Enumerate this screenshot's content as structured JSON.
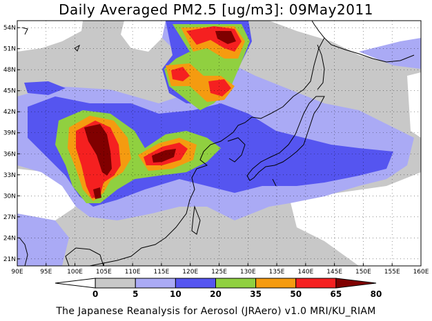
{
  "title": "Daily Averaged PM2.5 [ug/m3]: 09May2011",
  "footer": "The Japanese Reanalysis for Aerosol (JRAero) v1.0 MRI/KU_RIAM",
  "map": {
    "lon_range": [
      90,
      160
    ],
    "lat_range": [
      20,
      55
    ],
    "lon_ticks": [
      "90E",
      "95E",
      "100E",
      "105E",
      "110E",
      "115E",
      "120E",
      "125E",
      "130E",
      "135E",
      "140E",
      "145E",
      "150E",
      "155E",
      "160E"
    ],
    "lat_ticks": [
      "21N",
      "24N",
      "27N",
      "30N",
      "33N",
      "36N",
      "39N",
      "42N",
      "45N",
      "48N",
      "51N",
      "54N"
    ],
    "grid": true
  },
  "colorbar": {
    "levels": [
      "0",
      "5",
      "10",
      "20",
      "35",
      "50",
      "65",
      "80"
    ],
    "colors": [
      "#ffffff",
      "#c8c8c8",
      "#aaaaf5",
      "#5555f0",
      "#90d040",
      "#f59b10",
      "#f52020",
      "#800000"
    ]
  }
}
